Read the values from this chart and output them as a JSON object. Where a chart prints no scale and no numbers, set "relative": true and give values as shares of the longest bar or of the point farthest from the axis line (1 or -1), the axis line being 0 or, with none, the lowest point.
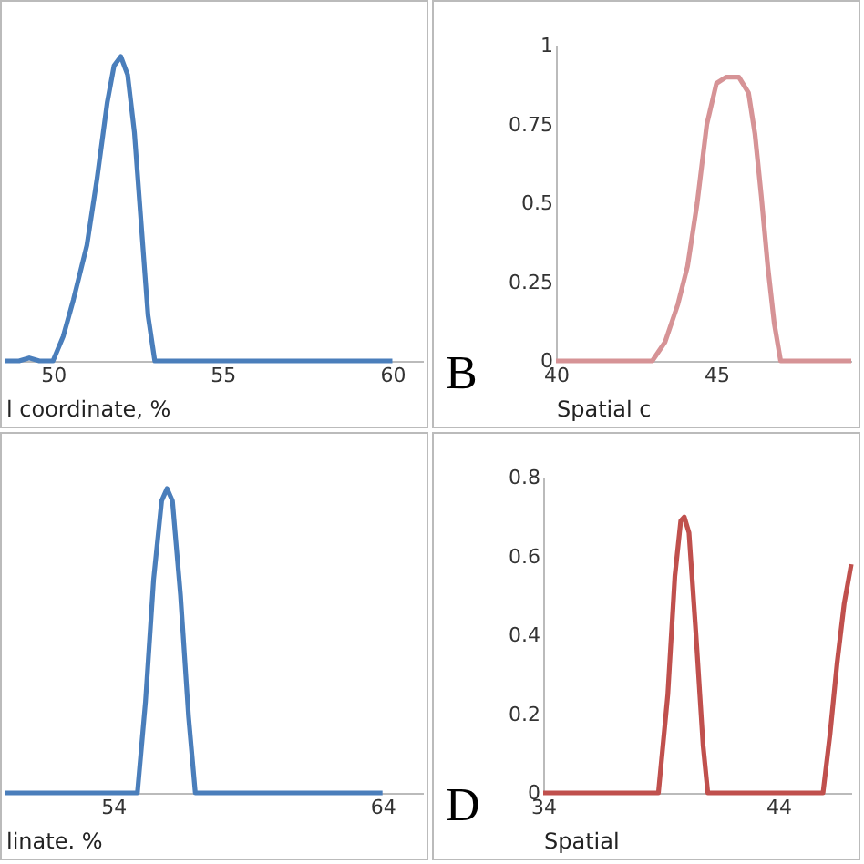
{
  "chart_data": [
    {
      "type": "line",
      "relative": true,
      "xlabel": "l coordinate, %",
      "xlim": [
        48.6,
        60.9
      ],
      "xticks": [
        50,
        55,
        60
      ],
      "grid": false,
      "series": [
        {
          "color": "#4a7ebb",
          "x": [
            48.6,
            49.0,
            49.3,
            49.6,
            50.0,
            50.3,
            50.6,
            51.0,
            51.3,
            51.6,
            51.8,
            52.0,
            52.2,
            52.4,
            52.6,
            52.8,
            53.0,
            53.5,
            54.0,
            60.0
          ],
          "values": [
            0,
            0,
            0.01,
            0,
            0,
            0.08,
            0.2,
            0.38,
            0.6,
            0.85,
            0.97,
            1,
            0.94,
            0.75,
            0.45,
            0.15,
            0,
            0,
            0,
            0
          ]
        }
      ]
    },
    {
      "type": "line",
      "xlabel": "Spatial c",
      "annotations": [
        "B"
      ],
      "xlim": [
        40,
        49.2
      ],
      "ylim": [
        0,
        1
      ],
      "xticks": [
        40,
        45
      ],
      "yticks": [
        0,
        0.25,
        0.5,
        0.75,
        1
      ],
      "grid": false,
      "series": [
        {
          "color": "#d69396",
          "x": [
            40,
            41,
            42,
            42.5,
            43.0,
            43.4,
            43.8,
            44.1,
            44.4,
            44.7,
            45.0,
            45.3,
            45.7,
            46.0,
            46.2,
            46.4,
            46.6,
            46.8,
            47.0,
            47.5,
            48.0,
            49.2
          ],
          "values": [
            0,
            0,
            0,
            0,
            0,
            0.06,
            0.18,
            0.3,
            0.5,
            0.75,
            0.88,
            0.9,
            0.9,
            0.85,
            0.72,
            0.52,
            0.3,
            0.12,
            0,
            0,
            0,
            0
          ]
        }
      ]
    },
    {
      "type": "line",
      "relative": true,
      "xlabel": "linate. %",
      "xlim": [
        50,
        65.5
      ],
      "xticks": [
        54,
        64
      ],
      "grid": false,
      "series": [
        {
          "color": "#4a7ebb",
          "x": [
            50,
            52,
            53.5,
            54.9,
            55.2,
            55.5,
            55.8,
            56.0,
            56.2,
            56.5,
            56.8,
            57.05,
            58,
            64
          ],
          "values": [
            0,
            0,
            0,
            0,
            0.3,
            0.7,
            0.96,
            1,
            0.96,
            0.65,
            0.25,
            0,
            0,
            0
          ]
        }
      ]
    },
    {
      "type": "line",
      "xlabel": "Spatial",
      "annotations": [
        "D"
      ],
      "xlim": [
        34,
        47.1
      ],
      "ylim": [
        0,
        0.8
      ],
      "xticks": [
        34,
        44
      ],
      "yticks": [
        0,
        0.2,
        0.4,
        0.6,
        0.8
      ],
      "grid": false,
      "series": [
        {
          "color": "#c0504d",
          "x": [
            34,
            36,
            38,
            38.9,
            39.3,
            39.6,
            39.85,
            40.0,
            40.2,
            40.5,
            40.8,
            41.0,
            42,
            44,
            45.9,
            46.2,
            46.5,
            46.8,
            47.1
          ],
          "values": [
            0,
            0,
            0,
            0,
            0.25,
            0.55,
            0.69,
            0.7,
            0.66,
            0.4,
            0.12,
            0,
            0,
            0,
            0,
            0.15,
            0.33,
            0.48,
            0.58
          ]
        }
      ]
    }
  ]
}
